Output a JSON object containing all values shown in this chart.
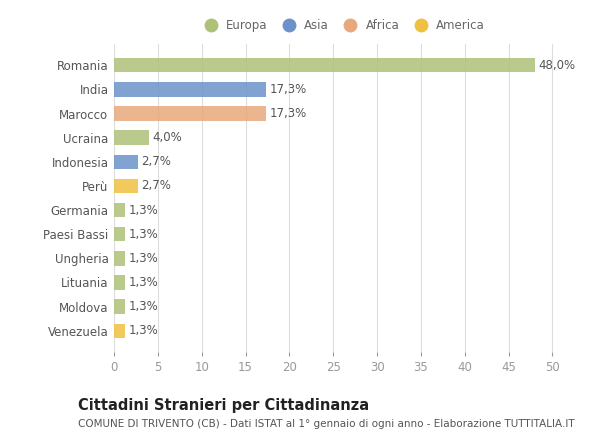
{
  "countries": [
    "Romania",
    "India",
    "Marocco",
    "Ucraina",
    "Indonesia",
    "Perù",
    "Germania",
    "Paesi Bassi",
    "Ungheria",
    "Lituania",
    "Moldova",
    "Venezuela"
  ],
  "values": [
    48.0,
    17.3,
    17.3,
    4.0,
    2.7,
    2.7,
    1.3,
    1.3,
    1.3,
    1.3,
    1.3,
    1.3
  ],
  "labels": [
    "48,0%",
    "17,3%",
    "17,3%",
    "4,0%",
    "2,7%",
    "2,7%",
    "1,3%",
    "1,3%",
    "1,3%",
    "1,3%",
    "1,3%",
    "1,3%"
  ],
  "colors": [
    "#adc178",
    "#6b93c9",
    "#e8a87c",
    "#adc178",
    "#6b93c9",
    "#f0c040",
    "#adc178",
    "#adc178",
    "#adc178",
    "#adc178",
    "#adc178",
    "#f0c040"
  ],
  "legend_labels": [
    "Europa",
    "Asia",
    "Africa",
    "America"
  ],
  "legend_colors": [
    "#adc178",
    "#6b93c9",
    "#e8a87c",
    "#f0c040"
  ],
  "title": "Cittadini Stranieri per Cittadinanza",
  "subtitle": "COMUNE DI TRIVENTO (CB) - Dati ISTAT al 1° gennaio di ogni anno - Elaborazione TUTTITALIA.IT",
  "xlim": [
    0,
    52
  ],
  "xticks": [
    0,
    5,
    10,
    15,
    20,
    25,
    30,
    35,
    40,
    45,
    50
  ],
  "background_color": "#ffffff",
  "grid_color": "#dddddd",
  "bar_height": 0.6,
  "label_fontsize": 8.5,
  "tick_fontsize": 8.5,
  "ytick_fontsize": 8.5,
  "title_fontsize": 10.5,
  "subtitle_fontsize": 7.5
}
